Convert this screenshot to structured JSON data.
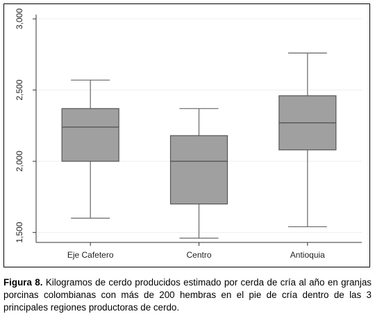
{
  "chart_data": {
    "type": "boxplot",
    "categories": [
      "Eje Cafetero",
      "Centro",
      "Antioquia"
    ],
    "boxes": [
      {
        "category": "Eje Cafetero",
        "min": 1600,
        "q1": 2000,
        "median": 2240,
        "q3": 2370,
        "max": 2570
      },
      {
        "category": "Centro",
        "min": 1460,
        "q1": 1700,
        "median": 2000,
        "q3": 2180,
        "max": 2370
      },
      {
        "category": "Antioquia",
        "min": 1540,
        "q1": 2080,
        "median": 2270,
        "q3": 2460,
        "max": 2760
      }
    ],
    "y_ticks": [
      1500,
      2000,
      2500,
      3000
    ],
    "y_tick_labels": [
      "1,500",
      "2,000",
      "2,500",
      "3,000"
    ],
    "ylim": [
      1430,
      3030
    ],
    "grid": true,
    "box_color": "#a0a0a0"
  },
  "caption": {
    "label": "Figura 8.",
    "text": " Kilogramos de cerdo producidos estimado por cerda de cría al año en granjas porcinas colombianas con más de 200 hembras en el pie de cría dentro de las 3 principales regiones productoras de cerdo."
  }
}
